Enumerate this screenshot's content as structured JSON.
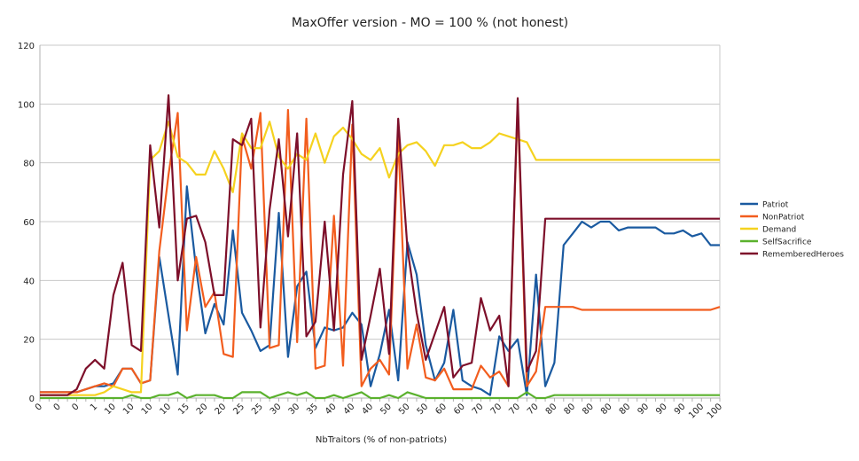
{
  "chart_data": {
    "type": "line",
    "title": "MaxOffer version - MO = 100 % (not honest)",
    "xlabel": "NbTraitors (% of non-patriots)",
    "ylabel": "",
    "ylim": [
      0,
      120
    ],
    "yticks": [
      0,
      20,
      40,
      60,
      80,
      100,
      120
    ],
    "grid": true,
    "legend": "right",
    "categories": [
      "0",
      "0",
      "0",
      "0",
      "1",
      "1",
      "1",
      "5",
      "10",
      "10",
      "10",
      "10",
      "10",
      "10",
      "10",
      "15",
      "15",
      "20",
      "20",
      "20",
      "20",
      "20",
      "25",
      "25",
      "25",
      "30",
      "30",
      "30",
      "30",
      "35",
      "35",
      "40",
      "40",
      "40",
      "40",
      "40",
      "45",
      "45",
      "50",
      "50",
      "50",
      "50",
      "55",
      "55",
      "60",
      "60",
      "60",
      "65",
      "65",
      "70",
      "70",
      "70",
      "70",
      "75",
      "75",
      "80",
      "80",
      "80",
      "80",
      "80",
      "80",
      "80",
      "80",
      "85",
      "85",
      "90",
      "90",
      "90",
      "90",
      "90",
      "95",
      "100",
      "100",
      "100",
      "100"
    ],
    "xticks": [
      {
        "i": 0,
        "label": "0"
      },
      {
        "i": 2,
        "label": "0"
      },
      {
        "i": 4,
        "label": "0"
      },
      {
        "i": 6,
        "label": "1"
      },
      {
        "i": 8,
        "label": "10"
      },
      {
        "i": 10,
        "label": "10"
      },
      {
        "i": 12,
        "label": "10"
      },
      {
        "i": 14,
        "label": "10"
      },
      {
        "i": 16,
        "label": "15"
      },
      {
        "i": 18,
        "label": "20"
      },
      {
        "i": 20,
        "label": "20"
      },
      {
        "i": 22,
        "label": "25"
      },
      {
        "i": 24,
        "label": "25"
      },
      {
        "i": 26,
        "label": "30"
      },
      {
        "i": 28,
        "label": "30"
      },
      {
        "i": 30,
        "label": "35"
      },
      {
        "i": 32,
        "label": "40"
      },
      {
        "i": 34,
        "label": "40"
      },
      {
        "i": 36,
        "label": "40"
      },
      {
        "i": 38,
        "label": "50"
      },
      {
        "i": 40,
        "label": "50"
      },
      {
        "i": 42,
        "label": "50"
      },
      {
        "i": 44,
        "label": "60"
      },
      {
        "i": 46,
        "label": "60"
      },
      {
        "i": 48,
        "label": "70"
      },
      {
        "i": 50,
        "label": "70"
      },
      {
        "i": 52,
        "label": "70"
      },
      {
        "i": 54,
        "label": "70"
      },
      {
        "i": 56,
        "label": "80"
      },
      {
        "i": 58,
        "label": "80"
      },
      {
        "i": 60,
        "label": "80"
      },
      {
        "i": 62,
        "label": "80"
      },
      {
        "i": 64,
        "label": "80"
      },
      {
        "i": 66,
        "label": "90"
      },
      {
        "i": 68,
        "label": "90"
      },
      {
        "i": 70,
        "label": "90"
      },
      {
        "i": 72,
        "label": "100"
      },
      {
        "i": 74,
        "label": "100"
      }
    ],
    "series": [
      {
        "name": "Patriot",
        "color": "#1a5aa0",
        "values": [
          2,
          2,
          2,
          2,
          2,
          3,
          4,
          4,
          5,
          10,
          10,
          5,
          6,
          48,
          28,
          8,
          72,
          44,
          22,
          32,
          25,
          57,
          29,
          23,
          16,
          18,
          63,
          14,
          38,
          43,
          17,
          24,
          23,
          24,
          29,
          25,
          4,
          15,
          30,
          6,
          53,
          42,
          18,
          6,
          12,
          30,
          6,
          4,
          3,
          1,
          21,
          16,
          20,
          1,
          42,
          4,
          12,
          52,
          56,
          60,
          58,
          60,
          60,
          57,
          58,
          58,
          58,
          58,
          56,
          56,
          57,
          55,
          56,
          52,
          52
        ]
      },
      {
        "name": "NonPatriot",
        "color": "#f25d1e",
        "values": [
          2,
          2,
          2,
          2,
          2,
          3,
          4,
          5,
          4,
          10,
          10,
          5,
          6,
          50,
          76,
          97,
          23,
          48,
          31,
          36,
          15,
          14,
          89,
          78,
          97,
          17,
          18,
          98,
          19,
          95,
          10,
          11,
          62,
          11,
          93,
          4,
          10,
          13,
          8,
          89,
          10,
          25,
          7,
          6,
          10,
          3,
          3,
          3,
          11,
          7,
          9,
          4,
          100,
          4,
          9,
          31,
          31,
          31,
          31,
          30,
          30,
          30,
          30,
          30,
          30,
          30,
          30,
          30,
          30,
          30,
          30,
          30,
          30,
          30,
          31
        ]
      },
      {
        "name": "Demand",
        "color": "#f5d21f",
        "values": [
          1,
          1,
          1,
          1,
          1,
          1,
          1,
          2,
          4,
          3,
          2,
          2,
          81,
          84,
          94,
          82,
          80,
          76,
          76,
          84,
          78,
          70,
          90,
          85,
          85,
          94,
          82,
          78,
          83,
          81,
          90,
          80,
          89,
          92,
          88,
          83,
          81,
          85,
          75,
          83,
          86,
          87,
          84,
          79,
          86,
          86,
          87,
          85,
          85,
          87,
          90,
          89,
          88,
          87,
          81,
          81,
          81,
          81,
          81,
          81,
          81,
          81,
          81,
          81,
          81,
          81,
          81,
          81,
          81,
          81,
          81,
          81,
          81,
          81,
          81
        ]
      },
      {
        "name": "SelfSacrifice",
        "color": "#5ab12d",
        "values": [
          0,
          0,
          0,
          0,
          0,
          0,
          0,
          0,
          0,
          0,
          1,
          0,
          0,
          1,
          1,
          2,
          0,
          1,
          1,
          1,
          0,
          0,
          2,
          2,
          2,
          0,
          1,
          2,
          1,
          2,
          0,
          0,
          1,
          0,
          1,
          2,
          0,
          0,
          1,
          0,
          2,
          1,
          0,
          0,
          0,
          0,
          0,
          0,
          0,
          0,
          0,
          0,
          0,
          2,
          0,
          0,
          1,
          1,
          1,
          1,
          1,
          1,
          1,
          1,
          1,
          1,
          1,
          1,
          1,
          1,
          1,
          1,
          1,
          1,
          1
        ]
      },
      {
        "name": "RememberedHeroes",
        "color": "#7d0f2a",
        "values": [
          1,
          1,
          1,
          1,
          3,
          10,
          13,
          10,
          35,
          46,
          18,
          16,
          86,
          58,
          103,
          40,
          61,
          62,
          53,
          35,
          35,
          88,
          86,
          95,
          24,
          64,
          88,
          55,
          90,
          21,
          26,
          60,
          23,
          76,
          101,
          13,
          28,
          44,
          15,
          95,
          51,
          29,
          13,
          22,
          31,
          7,
          11,
          12,
          34,
          23,
          28,
          4,
          102,
          9,
          16,
          61,
          61,
          61,
          61,
          61,
          61,
          61,
          61,
          61,
          61,
          61,
          61,
          61,
          61,
          61,
          61,
          61,
          61,
          61,
          61
        ]
      }
    ]
  }
}
